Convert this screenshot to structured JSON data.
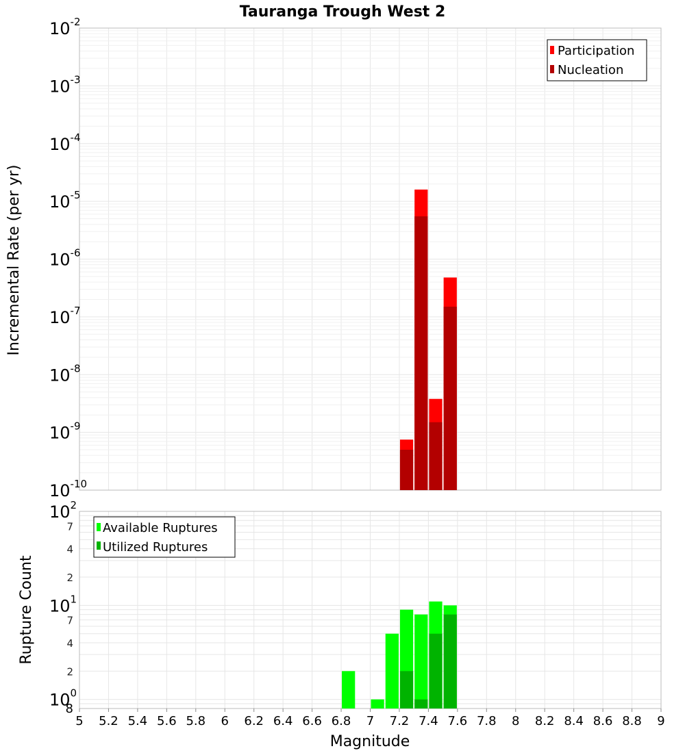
{
  "chart_data": [
    {
      "type": "bar",
      "title": "Tauranga Trough West 2",
      "xlabel": "Magnitude",
      "ylabel": "Incremental Rate (per yr)",
      "yscale": "log",
      "ylim": [
        1e-10,
        0.01
      ],
      "xlim": [
        5,
        9
      ],
      "bin_width": 0.1,
      "legend_position": "top-right",
      "y_tick_labels": [
        {
          "base": "10",
          "exp": "-10"
        },
        {
          "base": "10",
          "exp": "-9"
        },
        {
          "base": "10",
          "exp": "-8"
        },
        {
          "base": "10",
          "exp": "-7"
        },
        {
          "base": "10",
          "exp": "-6"
        },
        {
          "base": "10",
          "exp": "-5"
        },
        {
          "base": "10",
          "exp": "-4"
        },
        {
          "base": "10",
          "exp": "-3"
        },
        {
          "base": "10",
          "exp": "-2"
        }
      ],
      "series": [
        {
          "name": "Participation",
          "color": "#ff0000",
          "x": [
            7.25,
            7.35,
            7.45,
            7.55
          ],
          "values": [
            7.5e-10,
            1.6e-05,
            3.8e-09,
            4.8e-07
          ]
        },
        {
          "name": "Nucleation",
          "color": "#b30000",
          "x": [
            7.25,
            7.35,
            7.45,
            7.55
          ],
          "values": [
            5e-10,
            5.5e-06,
            1.5e-09,
            1.5e-07
          ]
        }
      ]
    },
    {
      "type": "bar",
      "xlabel": "Magnitude",
      "ylabel": "Rupture Count",
      "yscale": "log",
      "ylim": [
        0.8,
        100
      ],
      "xlim": [
        5,
        9
      ],
      "bin_width": 0.1,
      "legend_position": "top-left",
      "y_tick_labels": [
        {
          "base": "10",
          "exp": "0"
        },
        {
          "base": "10",
          "exp": "1"
        },
        {
          "base": "10",
          "exp": "2"
        }
      ],
      "y_minor_labels": [
        "8",
        "2",
        "4",
        "7",
        "2",
        "4",
        "7"
      ],
      "series": [
        {
          "name": "Available Ruptures",
          "color": "#00ff00",
          "x": [
            6.85,
            7.05,
            7.15,
            7.25,
            7.35,
            7.45,
            7.55
          ],
          "values": [
            2,
            1,
            5,
            9,
            8,
            11,
            10
          ]
        },
        {
          "name": "Utilized Ruptures",
          "color": "#00b300",
          "x": [
            7.25,
            7.35,
            7.45,
            7.55
          ],
          "values": [
            2,
            1,
            5,
            8
          ]
        }
      ]
    }
  ],
  "x_tick_labels": [
    "5",
    "5.2",
    "5.4",
    "5.6",
    "5.8",
    "6",
    "6.2",
    "6.4",
    "6.6",
    "6.8",
    "7",
    "7.2",
    "7.4",
    "7.6",
    "7.8",
    "8",
    "8.2",
    "8.4",
    "8.6",
    "8.8",
    "9"
  ]
}
